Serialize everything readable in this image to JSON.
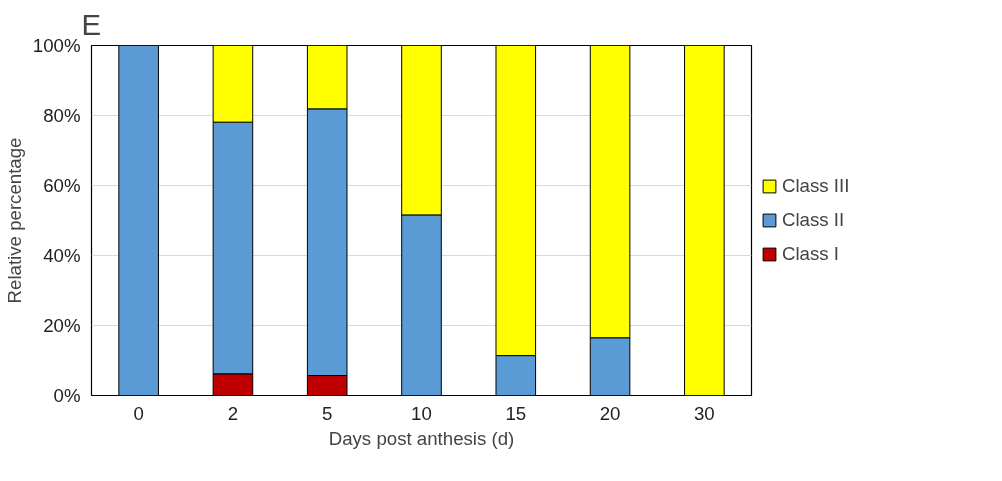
{
  "chart_data": {
    "type": "bar",
    "stacked": true,
    "xlabel": "Days post anthesis (d)",
    "ylabel": "Relative percentage",
    "annotations": [
      "E"
    ],
    "categories": [
      "0",
      "2",
      "5",
      "10",
      "15",
      "20",
      "30"
    ],
    "series": [
      {
        "name": "Class I",
        "color": "#c00000",
        "values": [
          null,
          6.2,
          5.7,
          null,
          null,
          null,
          null
        ]
      },
      {
        "name": "Class II",
        "color": "#5b9bd5",
        "values": [
          100,
          71.9,
          76.2,
          51.6,
          11.4,
          16.5,
          null
        ]
      },
      {
        "name": "Class III",
        "color": "#ffff00",
        "values": [
          null,
          21.9,
          18.1,
          48.4,
          88.6,
          83.5,
          100
        ]
      }
    ],
    "ylim": [
      0,
      100
    ],
    "yticks": [
      {
        "value": 0,
        "label": "0%"
      },
      {
        "value": 20,
        "label": "20%"
      },
      {
        "value": 40,
        "label": "40%"
      },
      {
        "value": 60,
        "label": "60%"
      },
      {
        "value": 80,
        "label": "80%"
      },
      {
        "value": 100,
        "label": "100%"
      }
    ],
    "grid": "y",
    "legend": "right"
  }
}
